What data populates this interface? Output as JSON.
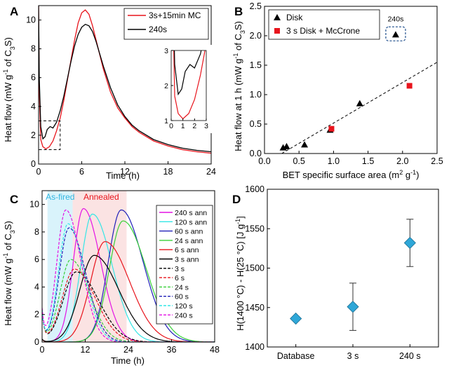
{
  "panels": {
    "A": "A",
    "B": "B",
    "C": "C",
    "D": "D"
  },
  "chart_data": [
    {
      "panel": "A",
      "type": "line",
      "xlabel": "Time (h)",
      "ylabel": "Heat flow (mW g⁻¹ of C₃S)",
      "xlim": [
        0,
        24
      ],
      "ylim": [
        0,
        11
      ],
      "xticks": [
        "0",
        "6",
        "12",
        "18",
        "24"
      ],
      "yticks": [
        "0",
        "2",
        "4",
        "6",
        "8",
        "10"
      ],
      "series": [
        {
          "name": "3s+15min MC",
          "color": "#e8141c",
          "x": [
            0,
            0.1,
            0.3,
            0.6,
            1.0,
            1.5,
            2.0,
            2.5,
            3.0,
            3.5,
            4.0,
            4.5,
            5.0,
            5.5,
            6.0,
            6.5,
            7.0,
            7.5,
            8.0,
            9.0,
            10.0,
            11.0,
            12.0,
            13.0,
            14.0,
            16.0,
            18.0,
            20.0,
            22.0,
            24.0
          ],
          "y": [
            11.0,
            5.0,
            1.7,
            1.2,
            1.05,
            1.2,
            1.6,
            2.3,
            3.2,
            4.4,
            5.8,
            7.2,
            8.6,
            9.8,
            10.5,
            10.7,
            10.4,
            9.6,
            8.6,
            6.6,
            5.0,
            3.9,
            3.2,
            2.6,
            2.2,
            1.6,
            1.25,
            1.0,
            0.85,
            0.75
          ]
        },
        {
          "name": "240s",
          "color": "#000000",
          "x": [
            0,
            0.1,
            0.3,
            0.6,
            0.9,
            1.2,
            1.6,
            2.0,
            2.5,
            3.0,
            3.5,
            4.0,
            4.5,
            5.0,
            5.5,
            6.0,
            6.5,
            7.0,
            7.5,
            8.0,
            9.0,
            10.0,
            11.0,
            12.0,
            13.0,
            14.0,
            16.0,
            18.0,
            20.0,
            22.0,
            24.0
          ],
          "y": [
            11.0,
            6.0,
            2.6,
            1.75,
            1.9,
            2.4,
            2.6,
            2.5,
            2.9,
            3.7,
            4.7,
            5.9,
            7.1,
            8.2,
            9.0,
            9.5,
            9.7,
            9.6,
            9.2,
            8.5,
            6.8,
            5.3,
            4.1,
            3.3,
            2.7,
            2.3,
            1.7,
            1.35,
            1.1,
            0.95,
            0.85
          ]
        }
      ],
      "inset": {
        "xlim": [
          0,
          3
        ],
        "ylim": [
          1,
          3
        ],
        "xticks": [
          "0",
          "1",
          "2",
          "3"
        ],
        "yticks": [
          "1",
          "2",
          "3"
        ]
      },
      "legend": "top-right"
    },
    {
      "panel": "B",
      "type": "scatter",
      "xlabel": "BET specific surface area (m² g⁻¹)",
      "ylabel": "Heat flow at 1 h (mW g⁻¹ of C₃S)",
      "xlim": [
        0,
        2.5
      ],
      "ylim": [
        0,
        2.5
      ],
      "xticks": [
        "0.0",
        "0.5",
        "1.0",
        "1.5",
        "2.0",
        "2.5"
      ],
      "yticks": [
        "0.0",
        "0.5",
        "1.0",
        "1.5",
        "2.0",
        "2.5"
      ],
      "series": [
        {
          "name": "Disk",
          "marker": "triangle",
          "color": "#000000",
          "points": [
            [
              0.27,
              0.1
            ],
            [
              0.32,
              0.12
            ],
            [
              0.58,
              0.15
            ],
            [
              0.95,
              0.4
            ],
            [
              1.38,
              0.85
            ],
            [
              1.9,
              2.02
            ]
          ]
        },
        {
          "name": "3 s Disk + McCrone",
          "marker": "square",
          "color": "#e8141c",
          "points": [
            [
              0.97,
              0.42
            ],
            [
              2.1,
              1.15
            ]
          ]
        }
      ],
      "fit_line": {
        "x": [
          0.25,
          2.5
        ],
        "y": [
          0.0,
          1.55
        ]
      },
      "annotation": "240s",
      "legend": "top-left"
    },
    {
      "panel": "C",
      "type": "line",
      "xlabel": "Time (h)",
      "ylabel": "Heat flow (mW g⁻¹ of C₃S)",
      "xlim": [
        0,
        48
      ],
      "ylim": [
        0,
        11
      ],
      "xticks": [
        "0",
        "12",
        "24",
        "36",
        "48"
      ],
      "yticks": [
        "0",
        "2",
        "4",
        "6",
        "8",
        "10"
      ],
      "region_labels": [
        "As-fired",
        "Annealed"
      ],
      "regions": [
        {
          "label": "As-fired",
          "x": [
            1.5,
            8.5
          ],
          "color": "#d9f3fb"
        },
        {
          "label": "Annealed",
          "x": [
            8.5,
            23.5
          ],
          "color": "#fbe3e3"
        }
      ],
      "series": [
        {
          "name": "240 s ann",
          "color": "#e414e4",
          "dash": false,
          "peak_x": 11.5,
          "peak_y": 9.7,
          "width": 2.8
        },
        {
          "name": "120 s ann",
          "color": "#33e6e6",
          "dash": false,
          "peak_x": 14.0,
          "peak_y": 9.3,
          "width": 3.2
        },
        {
          "name": "60 s ann",
          "color": "#2020b8",
          "dash": false,
          "peak_x": 22.0,
          "peak_y": 9.6,
          "width": 3.6
        },
        {
          "name": "24 s ann",
          "color": "#38d038",
          "dash": false,
          "peak_x": 22.5,
          "peak_y": 8.8,
          "width": 3.8
        },
        {
          "name": "6 s ann",
          "color": "#e8141c",
          "dash": false,
          "peak_x": 17.5,
          "peak_y": 7.3,
          "width": 4.0
        },
        {
          "name": "3 s ann",
          "color": "#000000",
          "dash": false,
          "peak_x": 14.5,
          "peak_y": 6.3,
          "width": 4.0
        },
        {
          "name": "3 s",
          "color": "#000000",
          "dash": true,
          "peak_x": 9.5,
          "peak_y": 5.1,
          "width": 3.6
        },
        {
          "name": "6 s",
          "color": "#e8141c",
          "dash": true,
          "peak_x": 9.0,
          "peak_y": 5.3,
          "width": 3.4
        },
        {
          "name": "24 s",
          "color": "#38d038",
          "dash": true,
          "peak_x": 8.0,
          "peak_y": 6.0,
          "width": 3.0
        },
        {
          "name": "60 s",
          "color": "#2020b8",
          "dash": true,
          "peak_x": 7.5,
          "peak_y": 8.3,
          "width": 2.7
        },
        {
          "name": "120 s",
          "color": "#33e6e6",
          "dash": true,
          "peak_x": 7.2,
          "peak_y": 8.6,
          "width": 2.6
        },
        {
          "name": "240 s",
          "color": "#e414e4",
          "dash": true,
          "peak_x": 6.6,
          "peak_y": 9.6,
          "width": 2.5
        }
      ],
      "legend": "right"
    },
    {
      "panel": "D",
      "type": "scatter",
      "ylabel": "H(1400 °C) - H(25 °C) [J g⁻¹]",
      "categories": [
        "Database",
        "3 s",
        "240 s"
      ],
      "values": [
        1436,
        1451,
        1532
      ],
      "errors": [
        0,
        30,
        30
      ],
      "ylim": [
        1400,
        1600
      ],
      "yticks": [
        "1400",
        "1450",
        "1500",
        "1550",
        "1600"
      ],
      "marker_color": "#2ea7d8"
    }
  ]
}
